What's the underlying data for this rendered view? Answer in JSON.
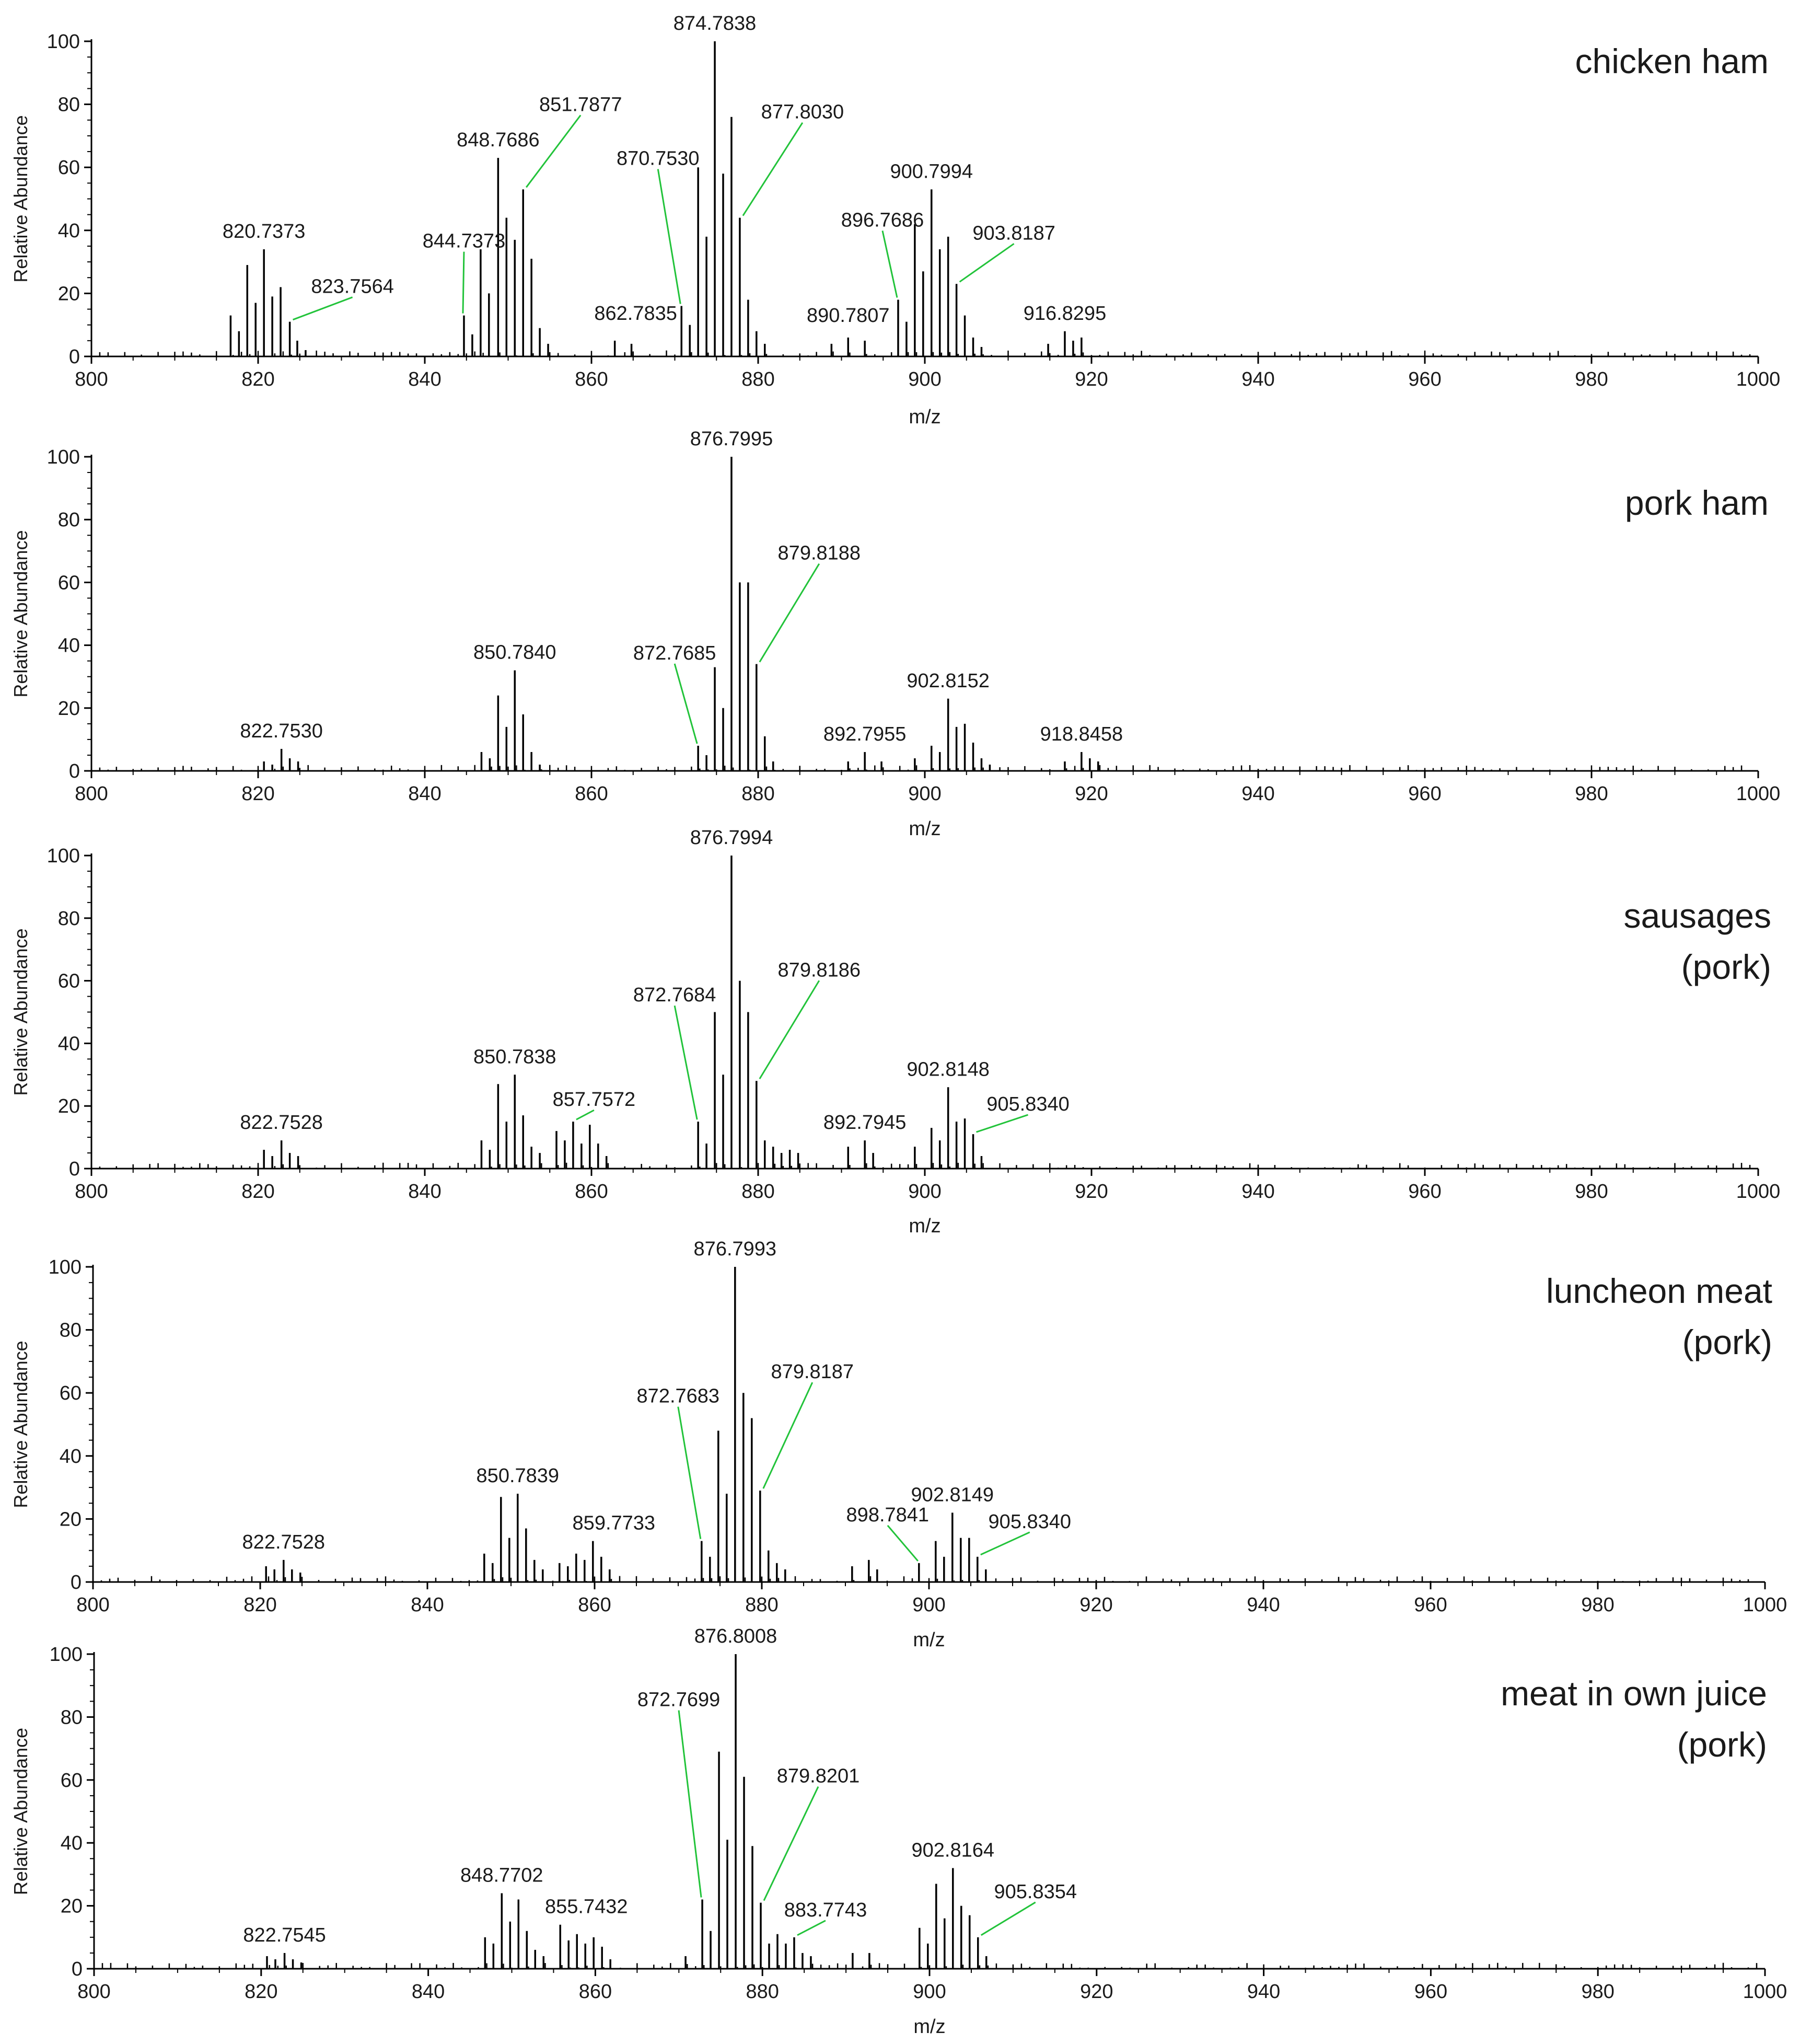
{
  "figure": {
    "xlabel": "m/z",
    "ylabel": "Relative Abundance"
  },
  "chart_data": [
    {
      "type": "bar",
      "title": "chicken ham",
      "title_lines": [
        "chicken ham"
      ],
      "xlabel": "m/z",
      "ylabel": "Relative Abundance",
      "xlim": [
        800,
        1000
      ],
      "ylim": [
        0,
        100
      ],
      "xticks": [
        800,
        820,
        840,
        860,
        880,
        900,
        920,
        940,
        960,
        980,
        1000
      ],
      "yticks": [
        0,
        20,
        40,
        60,
        80,
        100
      ],
      "peaks": [
        [
          816.7,
          13
        ],
        [
          817.7,
          8
        ],
        [
          818.7,
          29
        ],
        [
          819.7,
          17
        ],
        [
          820.7,
          34
        ],
        [
          821.7,
          19
        ],
        [
          822.7,
          22
        ],
        [
          823.8,
          11
        ],
        [
          824.7,
          5
        ],
        [
          825.7,
          2
        ],
        [
          844.7,
          13
        ],
        [
          845.7,
          7
        ],
        [
          846.7,
          34
        ],
        [
          847.7,
          20
        ],
        [
          848.8,
          63
        ],
        [
          849.8,
          44
        ],
        [
          850.8,
          37
        ],
        [
          851.8,
          53
        ],
        [
          852.8,
          31
        ],
        [
          853.8,
          9
        ],
        [
          854.8,
          4
        ],
        [
          862.8,
          5
        ],
        [
          864.8,
          4
        ],
        [
          870.8,
          16
        ],
        [
          871.8,
          10
        ],
        [
          872.8,
          60
        ],
        [
          873.8,
          38
        ],
        [
          874.8,
          100
        ],
        [
          875.8,
          58
        ],
        [
          876.8,
          76
        ],
        [
          877.8,
          44
        ],
        [
          878.8,
          18
        ],
        [
          879.8,
          8
        ],
        [
          880.8,
          4
        ],
        [
          888.8,
          4
        ],
        [
          890.8,
          6
        ],
        [
          892.8,
          5
        ],
        [
          896.8,
          18
        ],
        [
          897.8,
          11
        ],
        [
          898.8,
          42
        ],
        [
          899.8,
          27
        ],
        [
          900.8,
          53
        ],
        [
          901.8,
          34
        ],
        [
          902.8,
          38
        ],
        [
          903.8,
          23
        ],
        [
          904.8,
          13
        ],
        [
          905.8,
          6
        ],
        [
          906.8,
          3
        ],
        [
          914.8,
          4
        ],
        [
          916.8,
          8
        ],
        [
          917.8,
          5
        ],
        [
          918.8,
          6
        ]
      ],
      "labels": [
        {
          "text": "820.7373",
          "x": 820.7,
          "y": 34
        },
        {
          "text": "823.7564",
          "x": 823.8,
          "y": 11
        },
        {
          "text": "844.7373",
          "x": 844.7,
          "y": 13
        },
        {
          "text": "848.7686",
          "x": 848.8,
          "y": 63
        },
        {
          "text": "851.7877",
          "x": 851.8,
          "y": 53
        },
        {
          "text": "862.7835",
          "x": 862.8,
          "y": 5
        },
        {
          "text": "870.7530",
          "x": 870.8,
          "y": 16
        },
        {
          "text": "874.7838",
          "x": 874.8,
          "y": 100
        },
        {
          "text": "877.8030",
          "x": 877.8,
          "y": 44
        },
        {
          "text": "890.7807",
          "x": 890.8,
          "y": 6
        },
        {
          "text": "896.7686",
          "x": 896.8,
          "y": 18
        },
        {
          "text": "900.7994",
          "x": 900.8,
          "y": 53
        },
        {
          "text": "903.8187",
          "x": 903.8,
          "y": 23
        },
        {
          "text": "916.8295",
          "x": 916.8,
          "y": 8
        }
      ]
    },
    {
      "type": "bar",
      "title": "pork ham",
      "title_lines": [
        "pork ham"
      ],
      "xlabel": "m/z",
      "ylabel": "Relative Abundance",
      "xlim": [
        800,
        1000
      ],
      "ylim": [
        0,
        100
      ],
      "xticks": [
        800,
        820,
        840,
        860,
        880,
        900,
        920,
        940,
        960,
        980,
        1000
      ],
      "yticks": [
        0,
        20,
        40,
        60,
        80,
        100
      ],
      "peaks": [
        [
          820.7,
          3
        ],
        [
          821.7,
          2
        ],
        [
          822.8,
          7
        ],
        [
          823.8,
          4
        ],
        [
          824.8,
          3
        ],
        [
          846.8,
          6
        ],
        [
          847.8,
          4
        ],
        [
          848.8,
          24
        ],
        [
          849.8,
          14
        ],
        [
          850.8,
          32
        ],
        [
          851.8,
          18
        ],
        [
          852.8,
          6
        ],
        [
          853.8,
          2
        ],
        [
          872.8,
          8
        ],
        [
          873.8,
          5
        ],
        [
          874.8,
          33
        ],
        [
          875.8,
          20
        ],
        [
          876.8,
          100
        ],
        [
          877.8,
          60
        ],
        [
          878.8,
          60
        ],
        [
          879.8,
          34
        ],
        [
          880.8,
          11
        ],
        [
          881.8,
          3
        ],
        [
          890.8,
          3
        ],
        [
          892.8,
          6
        ],
        [
          894.8,
          3
        ],
        [
          898.8,
          4
        ],
        [
          900.8,
          8
        ],
        [
          901.8,
          6
        ],
        [
          902.8,
          23
        ],
        [
          903.8,
          14
        ],
        [
          904.8,
          15
        ],
        [
          905.8,
          9
        ],
        [
          906.8,
          4
        ],
        [
          907.8,
          2
        ],
        [
          916.8,
          3
        ],
        [
          918.8,
          6
        ],
        [
          919.8,
          4
        ],
        [
          920.8,
          3
        ]
      ],
      "labels": [
        {
          "text": "822.7530",
          "x": 822.8,
          "y": 7
        },
        {
          "text": "850.7840",
          "x": 850.8,
          "y": 32
        },
        {
          "text": "872.7685",
          "x": 872.8,
          "y": 8
        },
        {
          "text": "876.7995",
          "x": 876.8,
          "y": 100
        },
        {
          "text": "879.8188",
          "x": 879.8,
          "y": 34
        },
        {
          "text": "892.7955",
          "x": 892.8,
          "y": 6
        },
        {
          "text": "902.8152",
          "x": 902.8,
          "y": 23
        },
        {
          "text": "918.8458",
          "x": 918.8,
          "y": 6
        }
      ]
    },
    {
      "type": "bar",
      "title": "sausages (pork)",
      "title_lines": [
        "sausages",
        "(pork)"
      ],
      "xlabel": "m/z",
      "ylabel": "Relative Abundance",
      "xlim": [
        800,
        1000
      ],
      "ylim": [
        0,
        100
      ],
      "xticks": [
        800,
        820,
        840,
        860,
        880,
        900,
        920,
        940,
        960,
        980,
        1000
      ],
      "yticks": [
        0,
        20,
        40,
        60,
        80,
        100
      ],
      "peaks": [
        [
          820.7,
          6
        ],
        [
          821.7,
          4
        ],
        [
          822.8,
          9
        ],
        [
          823.8,
          5
        ],
        [
          824.8,
          4
        ],
        [
          846.8,
          9
        ],
        [
          847.8,
          6
        ],
        [
          848.8,
          27
        ],
        [
          849.8,
          15
        ],
        [
          850.8,
          30
        ],
        [
          851.8,
          17
        ],
        [
          852.8,
          7
        ],
        [
          853.8,
          5
        ],
        [
          855.8,
          12
        ],
        [
          856.8,
          9
        ],
        [
          857.8,
          15
        ],
        [
          858.8,
          8
        ],
        [
          859.8,
          14
        ],
        [
          860.8,
          8
        ],
        [
          861.8,
          4
        ],
        [
          872.8,
          15
        ],
        [
          873.8,
          8
        ],
        [
          874.8,
          50
        ],
        [
          875.8,
          30
        ],
        [
          876.8,
          100
        ],
        [
          877.8,
          60
        ],
        [
          878.8,
          50
        ],
        [
          879.8,
          28
        ],
        [
          880.8,
          9
        ],
        [
          881.8,
          7
        ],
        [
          882.8,
          5
        ],
        [
          883.8,
          6
        ],
        [
          884.8,
          5
        ],
        [
          890.8,
          7
        ],
        [
          892.8,
          9
        ],
        [
          893.8,
          5
        ],
        [
          898.8,
          7
        ],
        [
          900.8,
          13
        ],
        [
          901.8,
          9
        ],
        [
          902.8,
          26
        ],
        [
          903.8,
          15
        ],
        [
          904.8,
          16
        ],
        [
          905.8,
          11
        ],
        [
          906.8,
          4
        ]
      ],
      "labels": [
        {
          "text": "822.7528",
          "x": 822.8,
          "y": 9
        },
        {
          "text": "850.7838",
          "x": 850.8,
          "y": 30
        },
        {
          "text": "857.7572",
          "x": 857.8,
          "y": 15
        },
        {
          "text": "872.7684",
          "x": 872.8,
          "y": 15
        },
        {
          "text": "876.7994",
          "x": 876.8,
          "y": 100
        },
        {
          "text": "879.8186",
          "x": 879.8,
          "y": 28
        },
        {
          "text": "892.7945",
          "x": 892.8,
          "y": 9
        },
        {
          "text": "902.8148",
          "x": 902.8,
          "y": 26
        },
        {
          "text": "905.8340",
          "x": 905.8,
          "y": 11
        }
      ]
    },
    {
      "type": "bar",
      "title": "luncheon meat (pork)",
      "title_lines": [
        "luncheon meat",
        "(pork)"
      ],
      "xlabel": "m/z",
      "ylabel": "Relative Abundance",
      "xlim": [
        800,
        1000
      ],
      "ylim": [
        0,
        100
      ],
      "xticks": [
        800,
        820,
        840,
        860,
        880,
        900,
        920,
        940,
        960,
        980,
        1000
      ],
      "yticks": [
        0,
        20,
        40,
        60,
        80,
        100
      ],
      "peaks": [
        [
          820.7,
          5
        ],
        [
          821.7,
          4
        ],
        [
          822.8,
          7
        ],
        [
          823.8,
          4
        ],
        [
          824.8,
          3
        ],
        [
          846.8,
          9
        ],
        [
          847.8,
          6
        ],
        [
          848.8,
          27
        ],
        [
          849.8,
          14
        ],
        [
          850.8,
          28
        ],
        [
          851.8,
          17
        ],
        [
          852.8,
          7
        ],
        [
          853.8,
          4
        ],
        [
          855.8,
          6
        ],
        [
          856.8,
          5
        ],
        [
          857.8,
          9
        ],
        [
          858.8,
          7
        ],
        [
          859.8,
          13
        ],
        [
          860.8,
          8
        ],
        [
          861.8,
          4
        ],
        [
          872.8,
          13
        ],
        [
          873.8,
          8
        ],
        [
          874.8,
          48
        ],
        [
          875.8,
          28
        ],
        [
          876.8,
          100
        ],
        [
          877.8,
          60
        ],
        [
          878.8,
          52
        ],
        [
          879.8,
          29
        ],
        [
          880.8,
          10
        ],
        [
          881.8,
          6
        ],
        [
          882.8,
          4
        ],
        [
          890.8,
          5
        ],
        [
          892.8,
          7
        ],
        [
          893.8,
          4
        ],
        [
          898.8,
          6
        ],
        [
          900.8,
          13
        ],
        [
          901.8,
          8
        ],
        [
          902.8,
          22
        ],
        [
          903.8,
          14
        ],
        [
          904.8,
          14
        ],
        [
          905.8,
          8
        ],
        [
          906.8,
          4
        ]
      ],
      "labels": [
        {
          "text": "822.7528",
          "x": 822.8,
          "y": 7
        },
        {
          "text": "850.7839",
          "x": 850.8,
          "y": 28
        },
        {
          "text": "859.7733",
          "x": 859.8,
          "y": 13
        },
        {
          "text": "872.7683",
          "x": 872.8,
          "y": 13
        },
        {
          "text": "876.7993",
          "x": 876.8,
          "y": 100
        },
        {
          "text": "879.8187",
          "x": 879.8,
          "y": 29
        },
        {
          "text": "898.7841",
          "x": 898.8,
          "y": 6
        },
        {
          "text": "902.8149",
          "x": 902.8,
          "y": 22
        },
        {
          "text": "905.8340",
          "x": 905.8,
          "y": 8
        }
      ]
    },
    {
      "type": "bar",
      "title": "meat in own juice (pork)",
      "title_lines": [
        "meat in own juice",
        "(pork)"
      ],
      "xlabel": "m/z",
      "ylabel": "Relative Abundance",
      "xlim": [
        800,
        1000
      ],
      "ylim": [
        0,
        100
      ],
      "xticks": [
        800,
        820,
        840,
        860,
        880,
        900,
        920,
        940,
        960,
        980,
        1000
      ],
      "yticks": [
        0,
        20,
        40,
        60,
        80,
        100
      ],
      "peaks": [
        [
          820.7,
          4
        ],
        [
          821.7,
          3
        ],
        [
          822.8,
          5
        ],
        [
          823.8,
          3
        ],
        [
          824.8,
          2
        ],
        [
          846.8,
          10
        ],
        [
          847.8,
          8
        ],
        [
          848.8,
          24
        ],
        [
          849.8,
          15
        ],
        [
          850.8,
          22
        ],
        [
          851.8,
          12
        ],
        [
          852.8,
          6
        ],
        [
          853.8,
          4
        ],
        [
          855.8,
          14
        ],
        [
          856.8,
          9
        ],
        [
          857.8,
          11
        ],
        [
          858.8,
          8
        ],
        [
          859.8,
          10
        ],
        [
          860.8,
          7
        ],
        [
          861.8,
          3
        ],
        [
          870.8,
          4
        ],
        [
          872.8,
          22
        ],
        [
          873.8,
          12
        ],
        [
          874.8,
          69
        ],
        [
          875.8,
          41
        ],
        [
          876.8,
          100
        ],
        [
          877.8,
          61
        ],
        [
          878.8,
          39
        ],
        [
          879.8,
          21
        ],
        [
          880.8,
          8
        ],
        [
          881.8,
          11
        ],
        [
          882.8,
          8
        ],
        [
          883.8,
          10
        ],
        [
          884.8,
          5
        ],
        [
          885.8,
          4
        ],
        [
          890.8,
          5
        ],
        [
          892.8,
          5
        ],
        [
          898.8,
          13
        ],
        [
          899.8,
          8
        ],
        [
          900.8,
          27
        ],
        [
          901.8,
          16
        ],
        [
          902.8,
          32
        ],
        [
          903.8,
          20
        ],
        [
          904.8,
          17
        ],
        [
          905.8,
          10
        ],
        [
          906.8,
          4
        ]
      ],
      "labels": [
        {
          "text": "822.7545",
          "x": 822.8,
          "y": 5
        },
        {
          "text": "848.7702",
          "x": 848.8,
          "y": 24
        },
        {
          "text": "855.7432",
          "x": 855.8,
          "y": 14
        },
        {
          "text": "872.7699",
          "x": 872.8,
          "y": 22
        },
        {
          "text": "876.8008",
          "x": 876.8,
          "y": 100
        },
        {
          "text": "879.8201",
          "x": 879.8,
          "y": 21
        },
        {
          "text": "883.7743",
          "x": 883.8,
          "y": 10
        },
        {
          "text": "902.8164",
          "x": 902.8,
          "y": 32
        },
        {
          "text": "905.8354",
          "x": 905.8,
          "y": 10
        }
      ]
    }
  ]
}
